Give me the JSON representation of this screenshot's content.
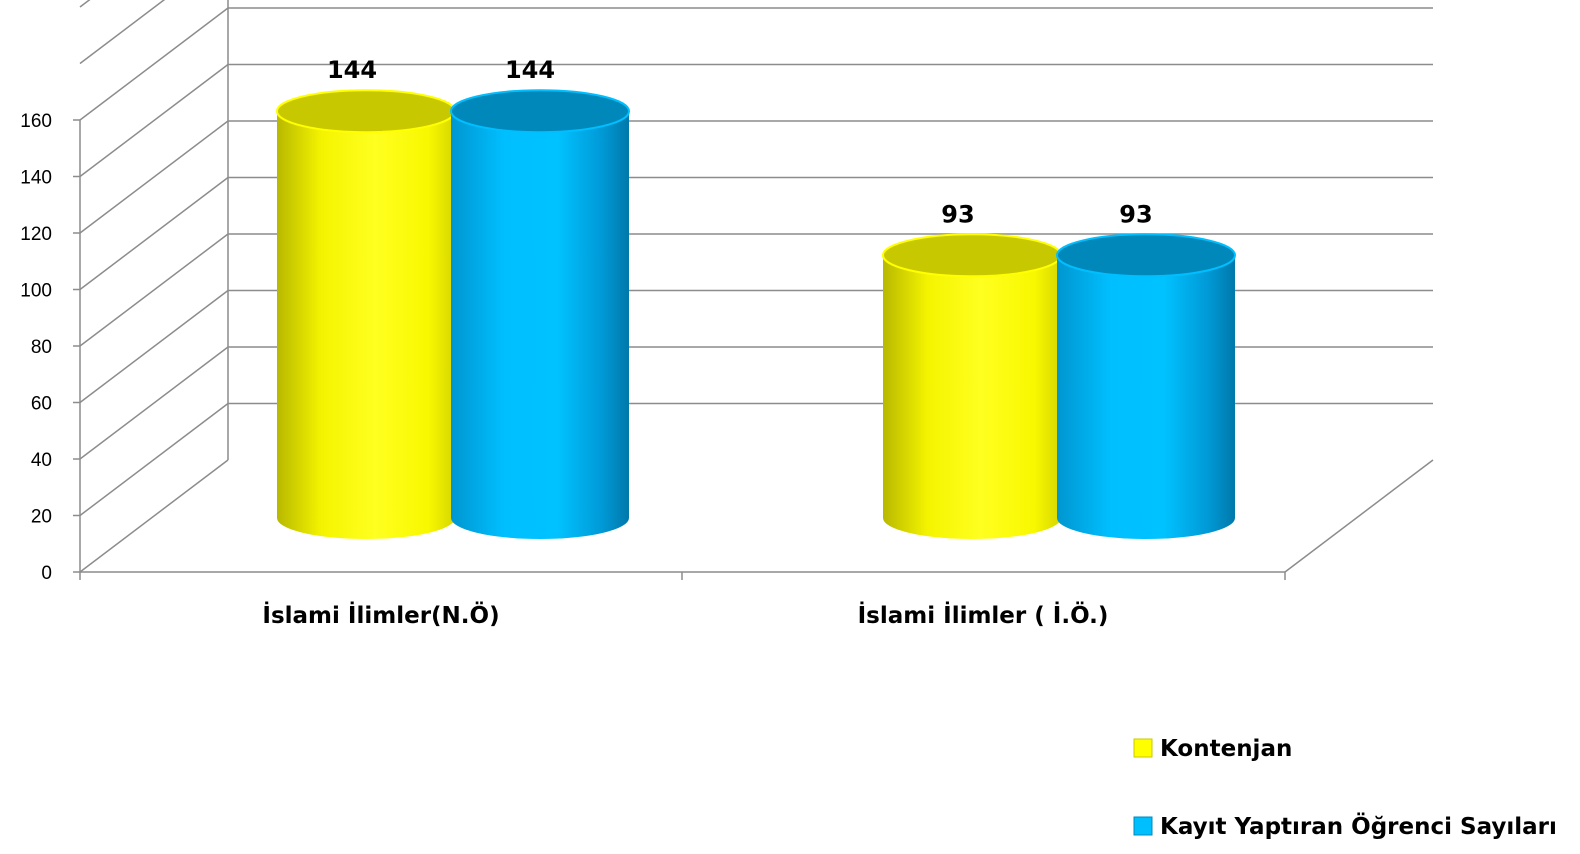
{
  "chart_data": {
    "type": "bar",
    "style": "3d-cylinder",
    "categories": [
      "İslami İlimler(N.Ö)",
      "İslami İlimler ( İ.Ö.)"
    ],
    "series": [
      {
        "name": "Kontenjan",
        "values": [
          144,
          93
        ],
        "color": "#FFFF00",
        "top_color": "#C8C800"
      },
      {
        "name": "Kayıt Yaptıran Öğrenci Sayıları",
        "values": [
          144,
          93
        ],
        "color": "#00BFFF",
        "top_color": "#0088BB"
      }
    ],
    "y_ticks": [
      "0",
      "20",
      "40",
      "60",
      "80",
      "100",
      "120",
      "140",
      "160"
    ],
    "ylim": [
      0,
      160
    ],
    "grid": true,
    "legend_position": "bottom-right"
  }
}
